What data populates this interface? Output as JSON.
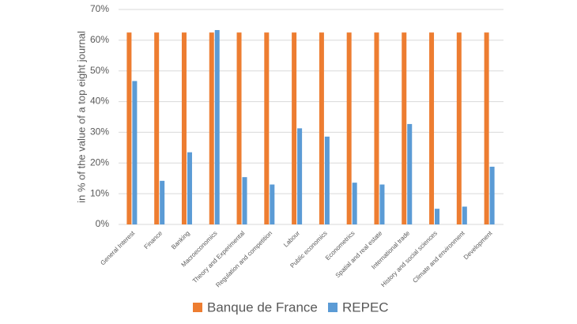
{
  "chart_data": {
    "type": "bar",
    "y_label": "in % of the value of a top eight journal",
    "categories": [
      "General Interest",
      "Finance",
      "Banking",
      "Macroeconomics",
      "Theory and Experimental",
      "Regulation and competition",
      "Labour",
      "Public economics",
      "Econometrics",
      "Spatial and real estate",
      "International  trade",
      "History and social sciences",
      "Climate and environment",
      "Development"
    ],
    "series": [
      {
        "name": "Banque de France",
        "color": "#ED7D31",
        "values": [
          62.5,
          62.5,
          62.5,
          62.5,
          62.5,
          62.5,
          62.5,
          62.5,
          62.5,
          62.5,
          62.5,
          62.5,
          62.5,
          62.5
        ]
      },
      {
        "name": "REPEC",
        "color": "#5B9BD5",
        "values": [
          46.7,
          14.2,
          23.5,
          63.3,
          15.4,
          13.0,
          31.3,
          28.6,
          13.6,
          13.0,
          32.7,
          5.1,
          5.8,
          18.8
        ]
      }
    ],
    "ylim": [
      0,
      70
    ],
    "yticks": [
      {
        "value": 0,
        "label": "0%"
      },
      {
        "value": 10,
        "label": "10%"
      },
      {
        "value": 20,
        "label": "20%"
      },
      {
        "value": 30,
        "label": "30%"
      },
      {
        "value": 40,
        "label": "40%"
      },
      {
        "value": 50,
        "label": "50%"
      },
      {
        "value": 60,
        "label": "60%"
      },
      {
        "value": 70,
        "label": "70%"
      }
    ],
    "grid": true,
    "legend": "bottom"
  }
}
